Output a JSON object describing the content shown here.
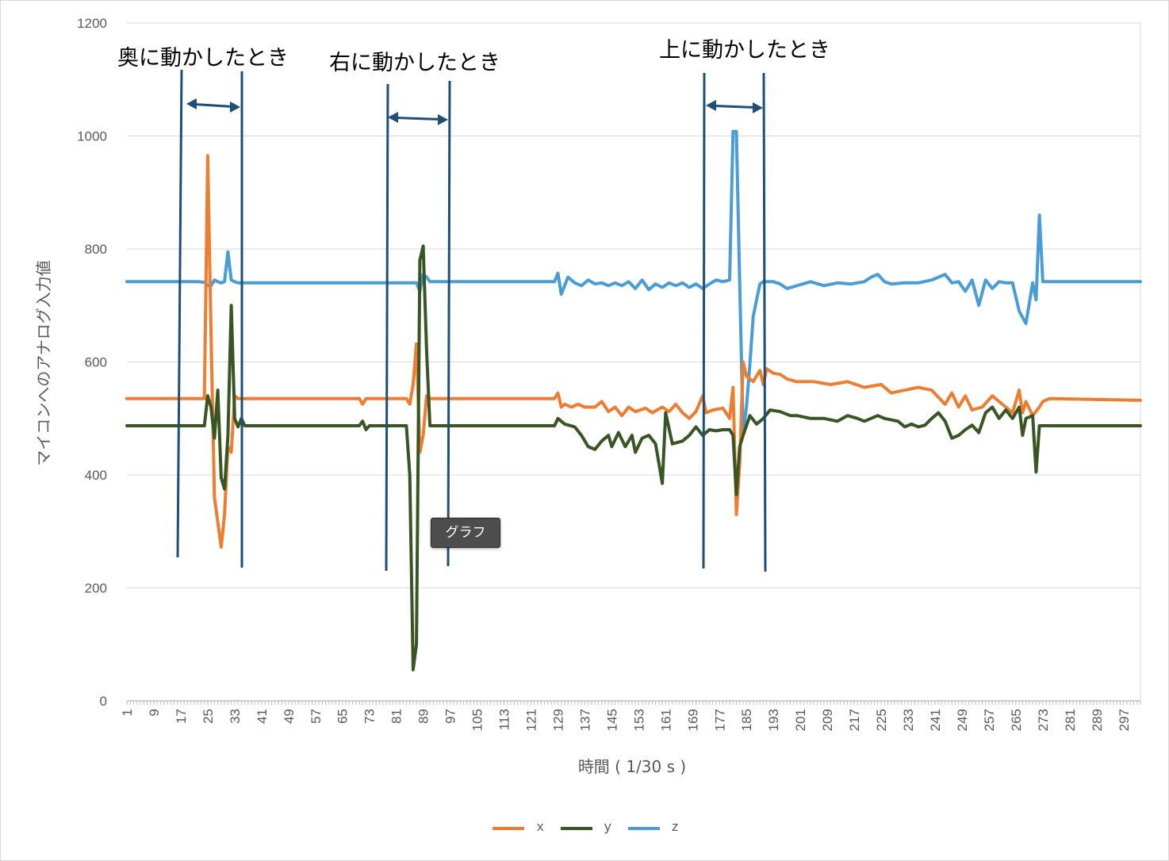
{
  "chart_data": {
    "type": "line",
    "ylabel": "マイコンへのアナログ入力値",
    "xlabel": "時間 ( 1/30 s )",
    "ylim": [
      0,
      1200
    ],
    "yticks": [
      0,
      200,
      400,
      600,
      800,
      1000,
      1200
    ],
    "xlim": [
      1,
      302
    ],
    "xtick_start": 1,
    "xtick_step": 8,
    "xtick_end": 297,
    "grid": "horizontal",
    "legend_position": "bottom",
    "series": [
      {
        "name": "x",
        "color": "#ED7D31",
        "points": [
          [
            1,
            535
          ],
          [
            22,
            535
          ],
          [
            24,
            535
          ],
          [
            25,
            965
          ],
          [
            26,
            650
          ],
          [
            27,
            360
          ],
          [
            29,
            272
          ],
          [
            30,
            330
          ],
          [
            31,
            450
          ],
          [
            32,
            440
          ],
          [
            33,
            540
          ],
          [
            34,
            535
          ],
          [
            70,
            535
          ],
          [
            71,
            525
          ],
          [
            72,
            535
          ],
          [
            84,
            535
          ],
          [
            85,
            525
          ],
          [
            86,
            560
          ],
          [
            87,
            632
          ],
          [
            88,
            440
          ],
          [
            89,
            470
          ],
          [
            90,
            540
          ],
          [
            91,
            535
          ],
          [
            128,
            535
          ],
          [
            129,
            545
          ],
          [
            130,
            520
          ],
          [
            131,
            525
          ],
          [
            133,
            520
          ],
          [
            135,
            525
          ],
          [
            137,
            520
          ],
          [
            140,
            520
          ],
          [
            142,
            530
          ],
          [
            144,
            512
          ],
          [
            146,
            520
          ],
          [
            148,
            505
          ],
          [
            150,
            520
          ],
          [
            152,
            512
          ],
          [
            155,
            518
          ],
          [
            157,
            510
          ],
          [
            160,
            520
          ],
          [
            162,
            512
          ],
          [
            164,
            525
          ],
          [
            166,
            510
          ],
          [
            168,
            500
          ],
          [
            170,
            512
          ],
          [
            172,
            540
          ],
          [
            173,
            510
          ],
          [
            175,
            515
          ],
          [
            178,
            518
          ],
          [
            180,
            500
          ],
          [
            181,
            555
          ],
          [
            182,
            330
          ],
          [
            183,
            420
          ],
          [
            184,
            600
          ],
          [
            185,
            575
          ],
          [
            187,
            565
          ],
          [
            189,
            585
          ],
          [
            190,
            560
          ],
          [
            191,
            588
          ],
          [
            193,
            580
          ],
          [
            195,
            578
          ],
          [
            197,
            570
          ],
          [
            200,
            565
          ],
          [
            205,
            565
          ],
          [
            210,
            560
          ],
          [
            215,
            565
          ],
          [
            220,
            555
          ],
          [
            225,
            560
          ],
          [
            228,
            545
          ],
          [
            232,
            550
          ],
          [
            236,
            555
          ],
          [
            240,
            550
          ],
          [
            244,
            525
          ],
          [
            246,
            545
          ],
          [
            248,
            520
          ],
          [
            250,
            540
          ],
          [
            252,
            515
          ],
          [
            255,
            520
          ],
          [
            258,
            540
          ],
          [
            260,
            530
          ],
          [
            262,
            520
          ],
          [
            264,
            510
          ],
          [
            266,
            550
          ],
          [
            267,
            510
          ],
          [
            268,
            530
          ],
          [
            270,
            505
          ],
          [
            272,
            520
          ],
          [
            273,
            530
          ],
          [
            275,
            535
          ],
          [
            302,
            532
          ]
        ]
      },
      {
        "name": "y",
        "color": "#375623",
        "points": [
          [
            1,
            487
          ],
          [
            22,
            487
          ],
          [
            24,
            487
          ],
          [
            25,
            540
          ],
          [
            26,
            520
          ],
          [
            27,
            465
          ],
          [
            28,
            550
          ],
          [
            29,
            395
          ],
          [
            30,
            375
          ],
          [
            31,
            470
          ],
          [
            32,
            700
          ],
          [
            33,
            500
          ],
          [
            34,
            485
          ],
          [
            35,
            500
          ],
          [
            36,
            487
          ],
          [
            70,
            487
          ],
          [
            71,
            495
          ],
          [
            72,
            480
          ],
          [
            73,
            487
          ],
          [
            84,
            487
          ],
          [
            85,
            400
          ],
          [
            86,
            55
          ],
          [
            87,
            100
          ],
          [
            88,
            780
          ],
          [
            89,
            805
          ],
          [
            90,
            620
          ],
          [
            91,
            487
          ],
          [
            128,
            487
          ],
          [
            129,
            500
          ],
          [
            131,
            490
          ],
          [
            134,
            485
          ],
          [
            136,
            470
          ],
          [
            138,
            450
          ],
          [
            140,
            445
          ],
          [
            142,
            460
          ],
          [
            144,
            470
          ],
          [
            145,
            450
          ],
          [
            147,
            475
          ],
          [
            149,
            450
          ],
          [
            151,
            470
          ],
          [
            152,
            440
          ],
          [
            154,
            465
          ],
          [
            156,
            470
          ],
          [
            158,
            455
          ],
          [
            160,
            385
          ],
          [
            161,
            510
          ],
          [
            163,
            455
          ],
          [
            166,
            460
          ],
          [
            168,
            470
          ],
          [
            170,
            485
          ],
          [
            172,
            470
          ],
          [
            174,
            480
          ],
          [
            176,
            478
          ],
          [
            178,
            480
          ],
          [
            180,
            480
          ],
          [
            181,
            470
          ],
          [
            182,
            365
          ],
          [
            183,
            450
          ],
          [
            184,
            470
          ],
          [
            186,
            505
          ],
          [
            188,
            490
          ],
          [
            190,
            500
          ],
          [
            192,
            515
          ],
          [
            195,
            512
          ],
          [
            198,
            505
          ],
          [
            200,
            505
          ],
          [
            204,
            500
          ],
          [
            208,
            500
          ],
          [
            212,
            495
          ],
          [
            215,
            505
          ],
          [
            218,
            500
          ],
          [
            220,
            495
          ],
          [
            224,
            505
          ],
          [
            226,
            500
          ],
          [
            230,
            495
          ],
          [
            232,
            485
          ],
          [
            234,
            490
          ],
          [
            236,
            485
          ],
          [
            238,
            488
          ],
          [
            240,
            500
          ],
          [
            242,
            510
          ],
          [
            244,
            495
          ],
          [
            246,
            465
          ],
          [
            248,
            470
          ],
          [
            250,
            480
          ],
          [
            252,
            488
          ],
          [
            254,
            475
          ],
          [
            256,
            510
          ],
          [
            258,
            520
          ],
          [
            260,
            500
          ],
          [
            262,
            515
          ],
          [
            264,
            500
          ],
          [
            266,
            520
          ],
          [
            267,
            470
          ],
          [
            268,
            500
          ],
          [
            270,
            505
          ],
          [
            271,
            405
          ],
          [
            272,
            487
          ],
          [
            302,
            487
          ]
        ]
      },
      {
        "name": "z",
        "color": "#4A9CD6",
        "points": [
          [
            1,
            742
          ],
          [
            22,
            742
          ],
          [
            24,
            741
          ],
          [
            25,
            735
          ],
          [
            26,
            735
          ],
          [
            27,
            745
          ],
          [
            28,
            742
          ],
          [
            29,
            740
          ],
          [
            30,
            742
          ],
          [
            31,
            795
          ],
          [
            32,
            745
          ],
          [
            33,
            742
          ],
          [
            34,
            740
          ],
          [
            87,
            740
          ],
          [
            88,
            725
          ],
          [
            89,
            755
          ],
          [
            90,
            750
          ],
          [
            91,
            742
          ],
          [
            128,
            742
          ],
          [
            129,
            757
          ],
          [
            130,
            720
          ],
          [
            131,
            735
          ],
          [
            132,
            750
          ],
          [
            134,
            740
          ],
          [
            136,
            735
          ],
          [
            138,
            745
          ],
          [
            140,
            738
          ],
          [
            142,
            740
          ],
          [
            144,
            735
          ],
          [
            146,
            740
          ],
          [
            148,
            735
          ],
          [
            150,
            742
          ],
          [
            152,
            730
          ],
          [
            154,
            745
          ],
          [
            156,
            728
          ],
          [
            158,
            738
          ],
          [
            160,
            732
          ],
          [
            162,
            740
          ],
          [
            164,
            735
          ],
          [
            166,
            740
          ],
          [
            168,
            732
          ],
          [
            170,
            738
          ],
          [
            172,
            730
          ],
          [
            174,
            738
          ],
          [
            176,
            745
          ],
          [
            178,
            742
          ],
          [
            180,
            745
          ],
          [
            181,
            1008
          ],
          [
            182,
            1008
          ],
          [
            183,
            740
          ],
          [
            184,
            475
          ],
          [
            185,
            520
          ],
          [
            186,
            595
          ],
          [
            187,
            680
          ],
          [
            188,
            710
          ],
          [
            189,
            738
          ],
          [
            190,
            742
          ],
          [
            193,
            742
          ],
          [
            195,
            738
          ],
          [
            197,
            730
          ],
          [
            200,
            735
          ],
          [
            204,
            742
          ],
          [
            208,
            735
          ],
          [
            212,
            740
          ],
          [
            216,
            738
          ],
          [
            220,
            742
          ],
          [
            222,
            750
          ],
          [
            224,
            755
          ],
          [
            226,
            742
          ],
          [
            228,
            738
          ],
          [
            232,
            740
          ],
          [
            236,
            740
          ],
          [
            240,
            745
          ],
          [
            244,
            755
          ],
          [
            246,
            740
          ],
          [
            248,
            742
          ],
          [
            250,
            725
          ],
          [
            252,
            745
          ],
          [
            254,
            700
          ],
          [
            256,
            745
          ],
          [
            258,
            730
          ],
          [
            260,
            742
          ],
          [
            262,
            740
          ],
          [
            264,
            740
          ],
          [
            266,
            690
          ],
          [
            268,
            668
          ],
          [
            270,
            740
          ],
          [
            271,
            710
          ],
          [
            272,
            860
          ],
          [
            273,
            742
          ],
          [
            302,
            742
          ]
        ]
      }
    ],
    "annotations": [
      {
        "text": "奥に動かしたとき"
      },
      {
        "text": "右に動かしたとき"
      },
      {
        "text": "上に動かしたとき"
      }
    ],
    "legend": [
      "x",
      "y",
      "z"
    ]
  },
  "tooltip": {
    "label": "グラフ"
  },
  "colors": {
    "divider_line": "#1F4E79",
    "grid": "#D9D9D9",
    "axis": "#BFBFBF"
  }
}
